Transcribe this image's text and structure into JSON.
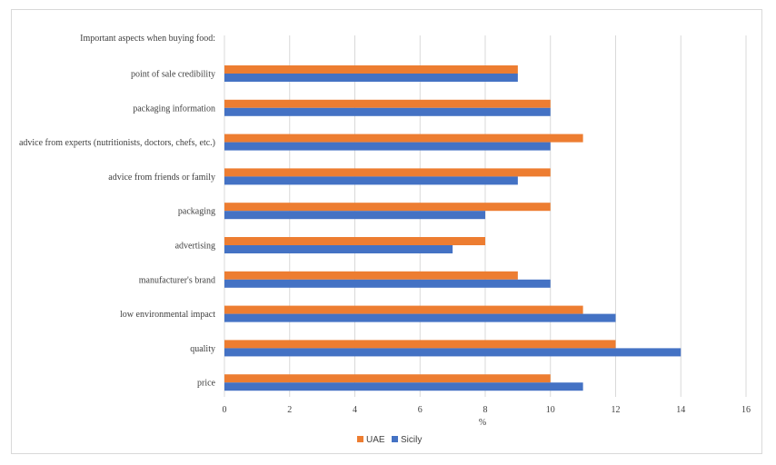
{
  "chart_data": {
    "type": "bar",
    "orientation": "horizontal",
    "title": "",
    "header_label": "Important aspects when buying food:",
    "xlabel": "%",
    "ylabel": "",
    "xlim": [
      0,
      16
    ],
    "xticks": [
      0,
      2,
      4,
      6,
      8,
      10,
      12,
      14,
      16
    ],
    "grid": true,
    "legend_position": "bottom",
    "categories": [
      "point of sale credibility",
      "packaging information",
      "advice from experts (nutritionists, doctors, chefs, etc.)",
      "advice from friends or family",
      "packaging",
      "advertising",
      "manufacturer's brand",
      "low environmental impact",
      "quality",
      "price"
    ],
    "series": [
      {
        "name": "UAE",
        "color": "#ED7D31",
        "values": [
          9,
          10,
          11,
          10,
          10,
          8,
          9,
          11,
          12,
          10
        ]
      },
      {
        "name": "Sicily",
        "color": "#4472C4",
        "values": [
          9,
          10,
          10,
          9,
          8,
          7,
          10,
          12,
          14,
          11
        ]
      }
    ]
  }
}
